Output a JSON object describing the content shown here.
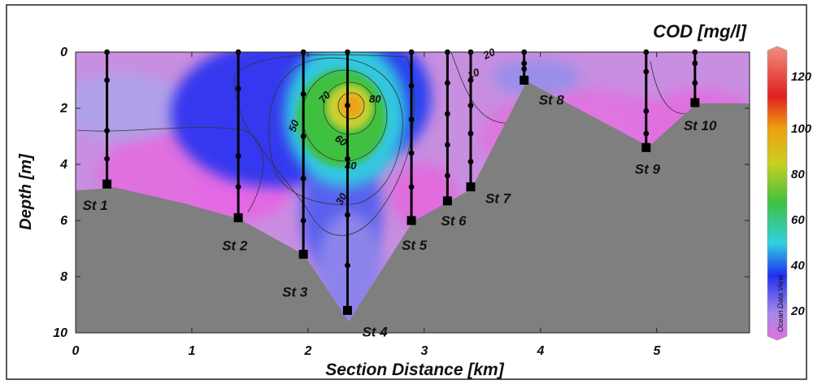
{
  "chart_data": {
    "type": "heatmap",
    "title": "COD [mg/l]",
    "xlabel": "Section Distance [km]",
    "ylabel": "Depth [m]",
    "xlim": [
      0,
      5.8
    ],
    "ylim": [
      0,
      10
    ],
    "y_inverted": true,
    "x_ticks": [
      "0",
      "1",
      "2",
      "3",
      "4",
      "5"
    ],
    "y_ticks": [
      "0",
      "2",
      "4",
      "6",
      "8",
      "10"
    ],
    "colorbar": {
      "ticks": [
        "20",
        "40",
        "60",
        "80",
        "100",
        "120"
      ],
      "range": [
        10,
        125
      ],
      "colors": [
        "#e070e0",
        "#9090e8",
        "#2030f0",
        "#30d0e0",
        "#40c040",
        "#c8d020",
        "#f0a010",
        "#e02020",
        "#f09080"
      ],
      "watermark": "Ocean Data View"
    },
    "contour_labels": [
      "80",
      "70",
      "60",
      "50",
      "40",
      "30",
      "20",
      "10"
    ],
    "stations": [
      {
        "name": "St 1",
        "x": 0.27,
        "bottom": 4.7,
        "samples": [
          0,
          1.0,
          2.8,
          3.8
        ]
      },
      {
        "name": "St 2",
        "x": 1.4,
        "bottom": 5.9,
        "samples": [
          0,
          1.3,
          3.7,
          4.8
        ]
      },
      {
        "name": "St 3",
        "x": 1.96,
        "bottom": 7.2,
        "samples": [
          0,
          1.5,
          3.0,
          4.5,
          6.0
        ]
      },
      {
        "name": "St 4",
        "x": 2.34,
        "bottom": 9.2,
        "samples": [
          0,
          1.9,
          3.8,
          5.8,
          7.6
        ]
      },
      {
        "name": "St 5",
        "x": 2.89,
        "bottom": 6.0,
        "samples": [
          0,
          1.2,
          2.4,
          3.6,
          4.8
        ]
      },
      {
        "name": "St 6",
        "x": 3.2,
        "bottom": 5.3,
        "samples": [
          0,
          1.1,
          2.2,
          3.3,
          4.4
        ]
      },
      {
        "name": "St 7",
        "x": 3.4,
        "bottom": 4.8,
        "samples": [
          0,
          1.0,
          1.9,
          2.9,
          3.9
        ]
      },
      {
        "name": "St 8",
        "x": 3.86,
        "bottom": 1.0,
        "samples": [
          0,
          0.4,
          0.6
        ]
      },
      {
        "name": "St 9",
        "x": 4.91,
        "bottom": 3.4,
        "samples": [
          0,
          0.7,
          2.1,
          2.9
        ]
      },
      {
        "name": "St 10",
        "x": 5.33,
        "bottom": 1.8,
        "samples": [
          0,
          0.4,
          1.1
        ]
      }
    ]
  }
}
